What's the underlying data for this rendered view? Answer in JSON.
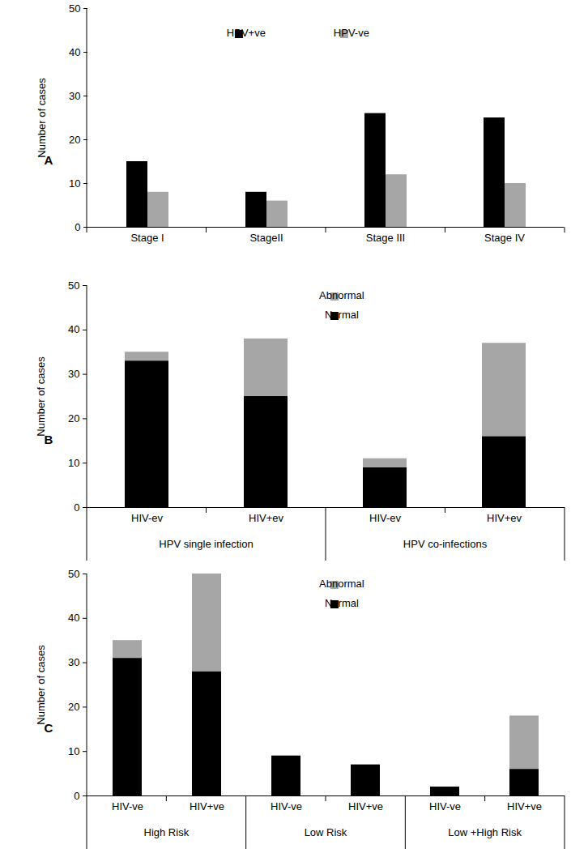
{
  "chart_data": [
    {
      "type": "bar",
      "title": "A",
      "y_label": "Number of cases",
      "categories": [
        "Stage I",
        "StageII",
        "Stage III",
        "Stage IV"
      ],
      "series": [
        {
          "name": "HPV+ve",
          "color": "#000000",
          "values": [
            15,
            8,
            26,
            25
          ]
        },
        {
          "name": "HPV-ve",
          "color": "#a6a6a6",
          "values": [
            8,
            6,
            12,
            10
          ]
        }
      ],
      "ylim": [
        0,
        50
      ],
      "yticks": [
        0,
        10,
        20,
        30,
        40,
        50
      ],
      "legend": "top",
      "stacked": false,
      "grid": false
    },
    {
      "type": "bar",
      "title": "B",
      "y_label": "Number of cases",
      "categories": [
        "HIV-ev",
        "HIV+ev",
        "HIV-ev",
        "HIV+ev"
      ],
      "category_groups": [
        "HPV single infection",
        "HPV single infection",
        "HPV co-infections",
        "HPV co-infections"
      ],
      "series": [
        {
          "name": "Normal",
          "color": "#000000",
          "values": [
            33,
            25,
            9,
            16
          ]
        },
        {
          "name": "Abnormal",
          "color": "#a6a6a6",
          "values": [
            2,
            13,
            2,
            21
          ]
        }
      ],
      "ylim": [
        0,
        50
      ],
      "yticks": [
        0,
        10,
        20,
        30,
        40,
        50
      ],
      "legend": "top",
      "stacked": true,
      "grid": false
    },
    {
      "type": "bar",
      "title": "C",
      "y_label": "Number of cases",
      "categories": [
        "HIV-ve",
        "HIV+ve",
        "HIV-ve",
        "HIV+ve",
        "HIV-ve",
        "HIV+ve"
      ],
      "category_groups": [
        "High Risk",
        "High Risk",
        "Low Risk",
        "Low Risk",
        "Low +High Risk",
        "Low +High Risk"
      ],
      "series": [
        {
          "name": "Normal",
          "color": "#000000",
          "values": [
            31,
            28,
            9,
            7,
            2,
            6
          ]
        },
        {
          "name": "Abnormal",
          "color": "#a6a6a6",
          "values": [
            4,
            22,
            0,
            0,
            0,
            12
          ]
        }
      ],
      "ylim": [
        0,
        50
      ],
      "yticks": [
        0,
        10,
        20,
        30,
        40,
        50
      ],
      "legend": "top",
      "stacked": true,
      "grid": false
    }
  ]
}
